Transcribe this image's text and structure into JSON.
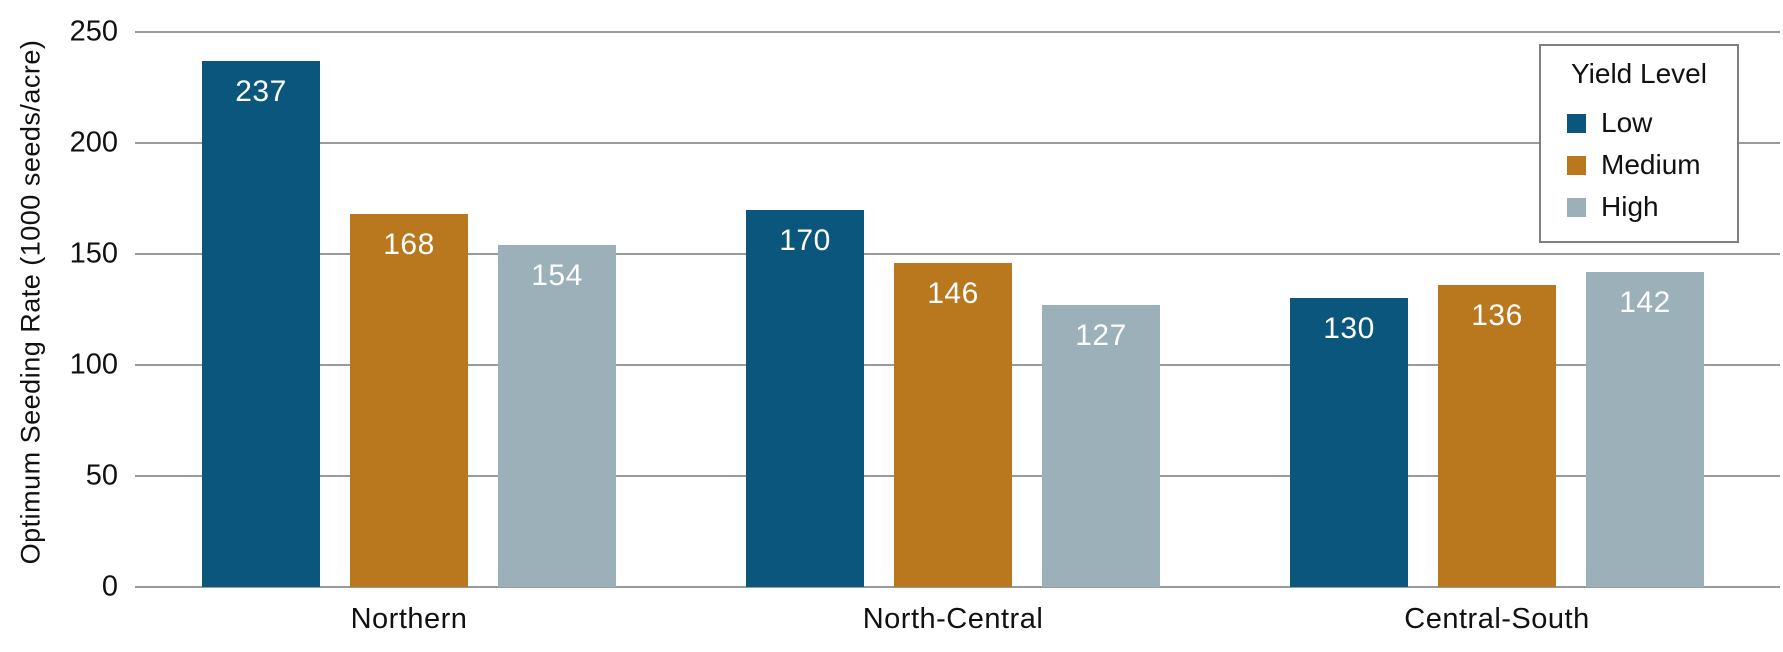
{
  "chart_data": {
    "type": "bar",
    "title": "",
    "categories": [
      "Northern",
      "North-Central",
      "Central-South"
    ],
    "series": [
      {
        "name": "Low",
        "color": "#0b567d",
        "values": [
          237,
          170,
          130
        ]
      },
      {
        "name": "Medium",
        "color": "#b9771e",
        "values": [
          168,
          146,
          136
        ]
      },
      {
        "name": "High",
        "color": "#9cb0ba",
        "values": [
          154,
          127,
          142
        ]
      }
    ],
    "xlabel": "",
    "ylabel": "Optimum Seeding Rate (1000 seeds/acre)",
    "ylim": [
      0,
      250
    ],
    "yticks": [
      0,
      50,
      100,
      150,
      200,
      250
    ],
    "grid": true,
    "bar_value_labels": true,
    "legend": {
      "title": "Yield Level",
      "position": "top-right"
    }
  },
  "colors": {
    "background": "#ffffff",
    "gridline": "#9a9a9a",
    "axis_text": "#111111",
    "bar_label_text": "#ffffff",
    "legend_border": "#7f7f7f"
  }
}
